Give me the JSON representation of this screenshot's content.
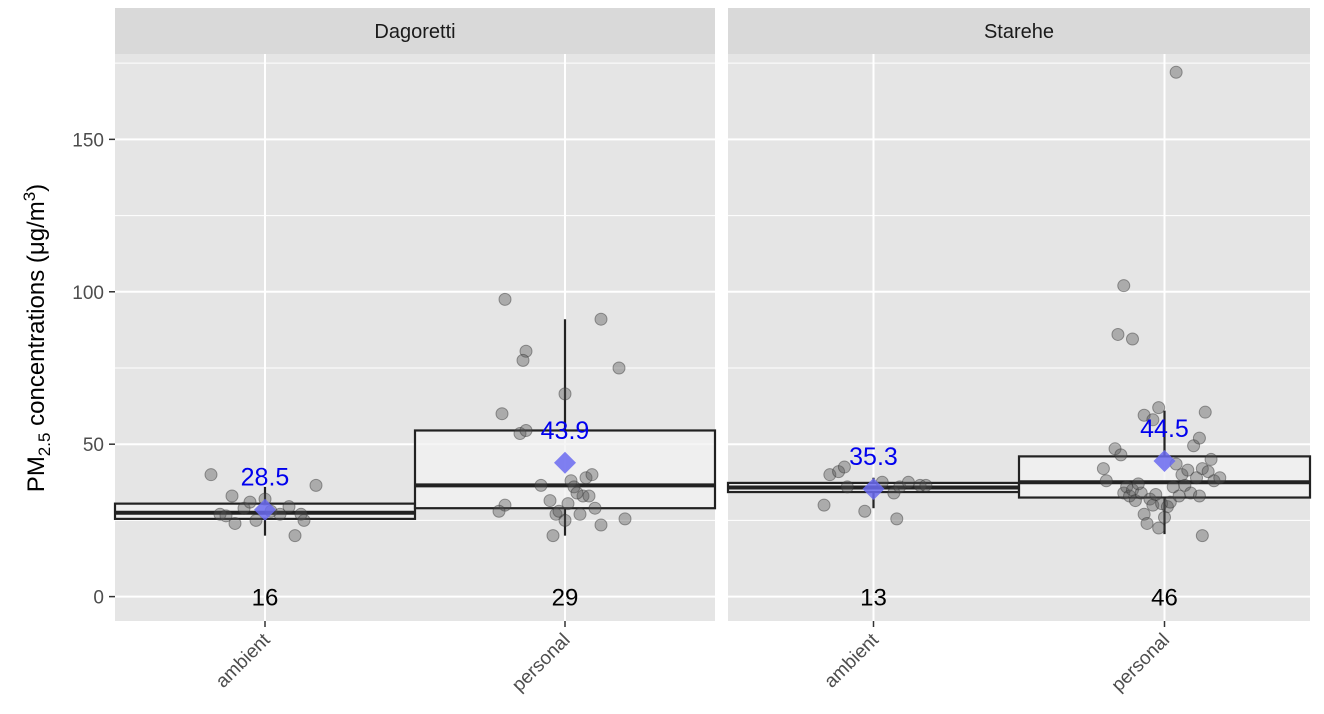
{
  "chart_data": {
    "type": "box",
    "ylabel": {
      "prefix": "PM",
      "sub": "2.5",
      "middle": " concentrations (μg/m",
      "sup": "3",
      "suffix": ")"
    },
    "ylim": [
      -8,
      178
    ],
    "yticks": [
      0,
      50,
      100,
      150
    ],
    "categories": [
      "ambient",
      "personal"
    ],
    "colors": {
      "panel": "#e5e5e5",
      "strip": "#d9d9d9",
      "grid": "#ffffff",
      "point": "#555555",
      "mean_marker": "#6a6af0",
      "mean_text": "#0000ee",
      "box_fill": "#f2f2f2",
      "box_line": "#222222"
    },
    "facets": [
      {
        "title": "Dagoretti",
        "groups": [
          {
            "category": "ambient",
            "n": "16",
            "mean": "28.5",
            "mean_value": 28.5,
            "box": {
              "whisker_low": 20,
              "q1": 25.5,
              "median": 27.5,
              "q3": 30.5,
              "whisker_high": 36
            },
            "points": [
              [
                -0.18,
                40
              ],
              [
                -0.15,
                27
              ],
              [
                -0.1,
                24
              ],
              [
                -0.07,
                29
              ],
              [
                -0.05,
                31
              ],
              [
                -0.11,
                33
              ],
              [
                -0.13,
                26.5
              ],
              [
                0,
                32
              ],
              [
                0.02,
                28
              ],
              [
                0.05,
                27
              ],
              [
                0.08,
                29.5
              ],
              [
                0.12,
                27
              ],
              [
                0.13,
                25
              ],
              [
                0.17,
                36.5
              ],
              [
                0.1,
                20
              ],
              [
                -0.03,
                25
              ]
            ]
          },
          {
            "category": "personal",
            "n": "29",
            "mean": "43.9",
            "mean_value": 43.9,
            "box": {
              "whisker_low": 20,
              "q1": 29,
              "median": 36.5,
              "q3": 54.5,
              "whisker_high": 91
            },
            "points": [
              [
                -0.2,
                97.5
              ],
              [
                -0.13,
                80.5
              ],
              [
                -0.14,
                77.5
              ],
              [
                0.12,
                91
              ],
              [
                0.18,
                75
              ],
              [
                0,
                66.5
              ],
              [
                -0.21,
                60
              ],
              [
                -0.15,
                53.5
              ],
              [
                -0.13,
                54.5
              ],
              [
                -0.2,
                30
              ],
              [
                -0.22,
                28
              ],
              [
                -0.08,
                36.5
              ],
              [
                -0.03,
                27
              ],
              [
                -0.05,
                31.5
              ],
              [
                0,
                25
              ],
              [
                0.02,
                38
              ],
              [
                0.03,
                36
              ],
              [
                0.05,
                27
              ],
              [
                0.06,
                33
              ],
              [
                0.07,
                39
              ],
              [
                0.09,
                40
              ],
              [
                0.08,
                33
              ],
              [
                0.1,
                29
              ],
              [
                0.12,
                23.5
              ],
              [
                0.2,
                25.5
              ],
              [
                -0.04,
                20
              ],
              [
                0.01,
                30.5
              ],
              [
                0.04,
                34
              ],
              [
                -0.02,
                28
              ]
            ]
          }
        ]
      },
      {
        "title": "Starehe",
        "groups": [
          {
            "category": "ambient",
            "n": "13",
            "mean": "35.3",
            "mean_value": 35.3,
            "box": {
              "whisker_low": 29,
              "q1": 34.3,
              "median": 35.8,
              "q3": 37.3,
              "whisker_high": 39
            },
            "points": [
              [
                -0.17,
                30
              ],
              [
                -0.15,
                40
              ],
              [
                -0.12,
                41
              ],
              [
                -0.1,
                42.5
              ],
              [
                -0.09,
                36
              ],
              [
                -0.03,
                28
              ],
              [
                0.03,
                37.5
              ],
              [
                0.07,
                34
              ],
              [
                0.09,
                36
              ],
              [
                0.08,
                25.5
              ],
              [
                0.12,
                37.5
              ],
              [
                0.16,
                36.5
              ],
              [
                0.18,
                36.5
              ]
            ]
          },
          {
            "category": "personal",
            "n": "46",
            "mean": "44.5",
            "mean_value": 44.5,
            "box": {
              "whisker_low": 20.5,
              "q1": 32.5,
              "median": 37.5,
              "q3": 46,
              "whisker_high": 61
            },
            "points": [
              [
                0.04,
                172
              ],
              [
                -0.14,
                102
              ],
              [
                -0.16,
                86
              ],
              [
                -0.11,
                84.5
              ],
              [
                0.14,
                60.5
              ],
              [
                -0.02,
                62
              ],
              [
                -0.07,
                59.5
              ],
              [
                -0.04,
                58
              ],
              [
                -0.21,
                42
              ],
              [
                -0.2,
                38
              ],
              [
                -0.17,
                48.5
              ],
              [
                -0.15,
                46.5
              ],
              [
                -0.14,
                34
              ],
              [
                -0.13,
                36
              ],
              [
                -0.12,
                33
              ],
              [
                -0.11,
                35
              ],
              [
                -0.1,
                31.5
              ],
              [
                -0.08,
                34
              ],
              [
                -0.07,
                27
              ],
              [
                -0.06,
                24
              ],
              [
                -0.05,
                32
              ],
              [
                -0.04,
                30
              ],
              [
                -0.02,
                22.5
              ],
              [
                -0.01,
                30.5
              ],
              [
                0.01,
                29.5
              ],
              [
                0.02,
                31
              ],
              [
                0.03,
                36
              ],
              [
                0.04,
                43.5
              ],
              [
                0.06,
                40
              ],
              [
                0.07,
                36.5
              ],
              [
                0.08,
                41.5
              ],
              [
                0.09,
                34
              ],
              [
                0.1,
                49.5
              ],
              [
                0.11,
                39
              ],
              [
                0.12,
                33
              ],
              [
                0.13,
                42
              ],
              [
                0.15,
                41
              ],
              [
                0.17,
                38
              ],
              [
                0.19,
                39
              ],
              [
                0.12,
                52
              ],
              [
                0.13,
                20
              ],
              [
                0.05,
                33
              ],
              [
                -0.09,
                37
              ],
              [
                -0.03,
                33.5
              ],
              [
                0,
                26
              ],
              [
                0.16,
                45
              ]
            ]
          }
        ]
      }
    ]
  }
}
